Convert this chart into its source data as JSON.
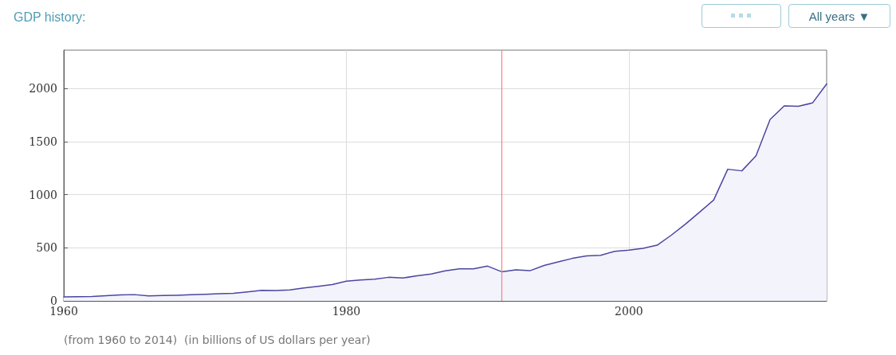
{
  "chart_data": {
    "type": "area",
    "title": "GDP history:",
    "x": [
      1960,
      1961,
      1962,
      1963,
      1964,
      1965,
      1966,
      1967,
      1968,
      1969,
      1970,
      1971,
      1972,
      1973,
      1974,
      1975,
      1976,
      1977,
      1978,
      1979,
      1980,
      1981,
      1982,
      1983,
      1984,
      1985,
      1986,
      1987,
      1988,
      1989,
      1990,
      1991,
      1992,
      1993,
      1994,
      1995,
      1996,
      1997,
      1998,
      1999,
      2000,
      2001,
      2002,
      2003,
      2004,
      2005,
      2006,
      2007,
      2008,
      2009,
      2010,
      2011,
      2012,
      2013,
      2014
    ],
    "series": [
      {
        "color": "#4b46a0",
        "values": [
          37,
          39,
          42,
          49,
          56,
          59,
          46,
          50,
          53,
          58,
          62,
          67,
          71,
          85,
          99,
          98,
          103,
          121,
          137,
          153,
          186,
          196,
          204,
          222,
          215,
          236,
          253,
          283,
          301,
          301,
          327,
          274,
          293,
          284,
          333,
          367,
          400,
          423,
          429,
          467,
          477,
          494,
          524,
          618,
          722,
          834,
          949,
          1239,
          1224,
          1365,
          1708,
          1835,
          1832,
          1863,
          2042
        ]
      }
    ],
    "xlim": [
      1960,
      2014
    ],
    "xticks": [
      1960,
      1980,
      2000
    ],
    "ylim": [
      0,
      2360
    ],
    "yticks": [
      0,
      500,
      1000,
      1500,
      2000
    ],
    "grid": true,
    "marker": "none",
    "line_style": "solid",
    "ref_lines": [
      {
        "axis": "x",
        "value": 1991,
        "color": "#ff7f7f"
      }
    ],
    "annotations": [
      "All years ▼",
      "(from 1960 to 2014)  (in billions of US dollars per year)"
    ]
  }
}
